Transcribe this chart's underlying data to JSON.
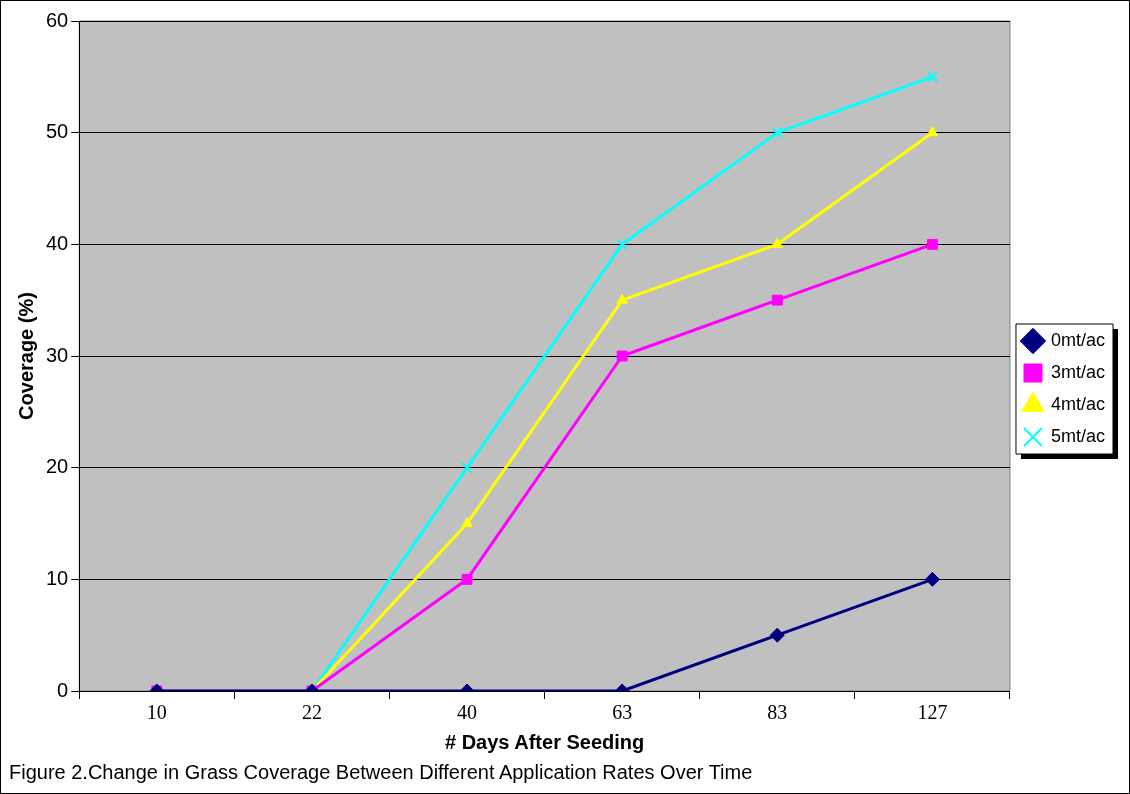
{
  "chart_data": {
    "type": "line",
    "xlabel": "# Days After Seeding",
    "ylabel": "Coverage (%)",
    "categories": [
      "10",
      "22",
      "40",
      "63",
      "83",
      "127"
    ],
    "series": [
      {
        "name": "0mt/ac",
        "color": "#000080",
        "marker": "diamond",
        "values": [
          0,
          0,
          0,
          0,
          5,
          10
        ]
      },
      {
        "name": "3mt/ac",
        "color": "#ff00ff",
        "marker": "square",
        "values": [
          0,
          0,
          10,
          30,
          35,
          40
        ]
      },
      {
        "name": "4mt/ac",
        "color": "#ffff00",
        "marker": "triangle",
        "values": [
          0,
          0,
          15,
          35,
          40,
          50
        ]
      },
      {
        "name": "5mt/ac",
        "color": "#00ffff",
        "marker": "cross",
        "values": [
          0,
          0,
          20,
          40,
          50,
          55
        ]
      }
    ],
    "ylim": [
      0,
      60
    ],
    "yticks": [
      0,
      10,
      20,
      30,
      40,
      50,
      60
    ],
    "grid": "y",
    "legend": "right",
    "line_style": "solid",
    "annotations": [
      "Figure 2.Change in Grass Coverage Between Different Application Rates Over Time"
    ]
  }
}
